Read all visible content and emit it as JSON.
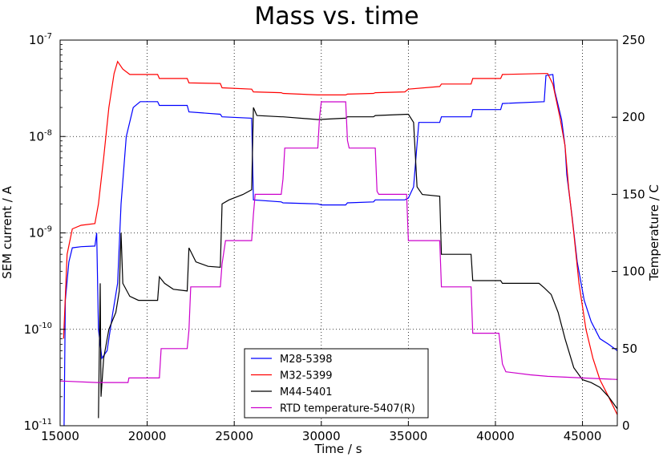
{
  "chart_data": {
    "type": "line",
    "title": "Mass vs. time",
    "xlabel": "Time / s",
    "ylabel_left": "SEM current / A",
    "ylabel_right": "Temperature / C",
    "xlim": [
      15000,
      47000
    ],
    "ylim_left": [
      1e-11,
      1e-07
    ],
    "ylim_right": [
      0,
      250
    ],
    "left_scale": "log",
    "grid": true,
    "legend_position": "lower-center",
    "x_ticks": [
      15000,
      20000,
      25000,
      30000,
      35000,
      40000,
      45000
    ],
    "x_tick_labels": [
      "15000",
      "20000",
      "25000",
      "30000",
      "35000",
      "40000",
      "45000"
    ],
    "y_left_tick_labels": [
      {
        "base": "10",
        "exp": "-11"
      },
      {
        "base": "10",
        "exp": "-10"
      },
      {
        "base": "10",
        "exp": "-9"
      },
      {
        "base": "10",
        "exp": "-8"
      },
      {
        "base": "10",
        "exp": "-7"
      }
    ],
    "y_right_ticks": [
      0,
      50,
      100,
      150,
      200,
      250
    ],
    "y_right_tick_labels": [
      "0",
      "50",
      "100",
      "150",
      "200",
      "250"
    ],
    "series": [
      {
        "name": "M28-5398",
        "color": "#0000ff",
        "axis": "left",
        "points": [
          [
            15200,
            3e-12
          ],
          [
            15300,
            2e-10
          ],
          [
            15500,
            5e-10
          ],
          [
            15700,
            7e-10
          ],
          [
            16200,
            7.2e-10
          ],
          [
            17000,
            7.3e-10
          ],
          [
            17100,
            1e-09
          ],
          [
            17200,
            1e-10
          ],
          [
            17400,
            5e-11
          ],
          [
            17700,
            6e-11
          ],
          [
            18000,
            1.4e-10
          ],
          [
            18300,
            3e-10
          ],
          [
            18500,
            2e-09
          ],
          [
            18800,
            1e-08
          ],
          [
            19200,
            2e-08
          ],
          [
            19600,
            2.3e-08
          ],
          [
            20600,
            2.3e-08
          ],
          [
            20700,
            2.1e-08
          ],
          [
            22300,
            2.1e-08
          ],
          [
            22400,
            1.8e-08
          ],
          [
            24200,
            1.7e-08
          ],
          [
            24300,
            1.6e-08
          ],
          [
            26000,
            1.55e-08
          ],
          [
            26100,
            2.2e-09
          ],
          [
            27700,
            2.1e-09
          ],
          [
            27800,
            2.05e-09
          ],
          [
            29800,
            2e-09
          ],
          [
            30000,
            1.95e-09
          ],
          [
            31400,
            1.95e-09
          ],
          [
            31500,
            2.05e-09
          ],
          [
            33000,
            2.1e-09
          ],
          [
            33100,
            2.2e-09
          ],
          [
            34800,
            2.2e-09
          ],
          [
            35000,
            2.3e-09
          ],
          [
            35300,
            3e-09
          ],
          [
            35600,
            1.4e-08
          ],
          [
            36800,
            1.4e-08
          ],
          [
            36900,
            1.6e-08
          ],
          [
            38600,
            1.6e-08
          ],
          [
            38700,
            1.9e-08
          ],
          [
            40300,
            1.9e-08
          ],
          [
            40400,
            2.2e-08
          ],
          [
            42800,
            2.3e-08
          ],
          [
            42900,
            4.3e-08
          ],
          [
            43300,
            4.4e-08
          ],
          [
            43400,
            3e-08
          ],
          [
            43800,
            1.5e-08
          ],
          [
            44000,
            8e-09
          ],
          [
            44100,
            4e-09
          ],
          [
            44400,
            1.5e-09
          ],
          [
            44700,
            5e-10
          ],
          [
            45100,
            2e-10
          ],
          [
            45500,
            1.2e-10
          ],
          [
            46000,
            8e-11
          ],
          [
            46500,
            7e-11
          ],
          [
            47000,
            6e-11
          ]
        ]
      },
      {
        "name": "M32-5399",
        "color": "#ff0000",
        "axis": "left",
        "points": [
          [
            15200,
            8e-11
          ],
          [
            15400,
            6e-10
          ],
          [
            15700,
            1.1e-09
          ],
          [
            16200,
            1.2e-09
          ],
          [
            17000,
            1.25e-09
          ],
          [
            17200,
            2e-09
          ],
          [
            17500,
            6e-09
          ],
          [
            17800,
            2e-08
          ],
          [
            18100,
            4.5e-08
          ],
          [
            18300,
            6e-08
          ],
          [
            18600,
            5e-08
          ],
          [
            19000,
            4.4e-08
          ],
          [
            20600,
            4.4e-08
          ],
          [
            20700,
            4e-08
          ],
          [
            22300,
            4e-08
          ],
          [
            22400,
            3.6e-08
          ],
          [
            24200,
            3.55e-08
          ],
          [
            24300,
            3.2e-08
          ],
          [
            26000,
            3.1e-08
          ],
          [
            26100,
            2.9e-08
          ],
          [
            27700,
            2.85e-08
          ],
          [
            27800,
            2.8e-08
          ],
          [
            29800,
            2.7e-08
          ],
          [
            31400,
            2.7e-08
          ],
          [
            31500,
            2.75e-08
          ],
          [
            33000,
            2.8e-08
          ],
          [
            33100,
            2.85e-08
          ],
          [
            34800,
            2.9e-08
          ],
          [
            35000,
            3.1e-08
          ],
          [
            36800,
            3.3e-08
          ],
          [
            36900,
            3.5e-08
          ],
          [
            38600,
            3.5e-08
          ],
          [
            38700,
            4e-08
          ],
          [
            40300,
            4e-08
          ],
          [
            40400,
            4.4e-08
          ],
          [
            42800,
            4.5e-08
          ],
          [
            43000,
            4.5e-08
          ],
          [
            43300,
            3.5e-08
          ],
          [
            43700,
            1.6e-08
          ],
          [
            44000,
            8e-09
          ],
          [
            44200,
            3e-09
          ],
          [
            44500,
            1e-09
          ],
          [
            44800,
            3e-10
          ],
          [
            45200,
            1e-10
          ],
          [
            45600,
            5e-11
          ],
          [
            46000,
            3e-11
          ],
          [
            46500,
            2e-11
          ],
          [
            47000,
            1.3e-11
          ]
        ]
      },
      {
        "name": "M44-5401",
        "color": "#000000",
        "axis": "left",
        "points": [
          [
            17200,
            1.2e-11
          ],
          [
            17300,
            3e-10
          ],
          [
            17350,
            2e-11
          ],
          [
            17500,
            5e-11
          ],
          [
            17800,
            1e-10
          ],
          [
            18200,
            1.5e-10
          ],
          [
            18400,
            2.5e-10
          ],
          [
            18500,
            1e-09
          ],
          [
            18600,
            3e-10
          ],
          [
            19000,
            2.2e-10
          ],
          [
            19500,
            2e-10
          ],
          [
            20600,
            2e-10
          ],
          [
            20700,
            3.5e-10
          ],
          [
            21000,
            3e-10
          ],
          [
            21500,
            2.6e-10
          ],
          [
            22300,
            2.5e-10
          ],
          [
            22400,
            7e-10
          ],
          [
            22800,
            5e-10
          ],
          [
            23500,
            4.5e-10
          ],
          [
            24200,
            4.4e-10
          ],
          [
            24300,
            2e-09
          ],
          [
            24700,
            2.2e-09
          ],
          [
            25500,
            2.5e-09
          ],
          [
            26000,
            2.8e-09
          ],
          [
            26100,
            2e-08
          ],
          [
            26300,
            1.65e-08
          ],
          [
            27700,
            1.6e-08
          ],
          [
            27800,
            1.6e-08
          ],
          [
            29800,
            1.5e-08
          ],
          [
            31400,
            1.55e-08
          ],
          [
            31500,
            1.6e-08
          ],
          [
            33000,
            1.6e-08
          ],
          [
            33100,
            1.65e-08
          ],
          [
            35000,
            1.7e-08
          ],
          [
            35300,
            1.4e-08
          ],
          [
            35500,
            3e-09
          ],
          [
            35800,
            2.5e-09
          ],
          [
            36800,
            2.4e-09
          ],
          [
            36900,
            6e-10
          ],
          [
            38600,
            6e-10
          ],
          [
            38700,
            3.2e-10
          ],
          [
            40300,
            3.2e-10
          ],
          [
            40400,
            3e-10
          ],
          [
            42500,
            3e-10
          ],
          [
            42800,
            2.7e-10
          ],
          [
            43200,
            2.3e-10
          ],
          [
            43600,
            1.5e-10
          ],
          [
            44000,
            8e-11
          ],
          [
            44500,
            4e-11
          ],
          [
            45000,
            3e-11
          ],
          [
            45500,
            2.8e-11
          ],
          [
            46000,
            2.5e-11
          ],
          [
            46500,
            2e-11
          ],
          [
            47000,
            1.5e-11
          ]
        ]
      },
      {
        "name": "RTD temperature-5407(R)",
        "color": "#cc00cc",
        "axis": "right",
        "points": [
          [
            15000,
            29
          ],
          [
            17100,
            28
          ],
          [
            17200,
            28
          ],
          [
            18200,
            28
          ],
          [
            18900,
            28
          ],
          [
            18950,
            31
          ],
          [
            19000,
            31
          ],
          [
            20600,
            31
          ],
          [
            20700,
            31
          ],
          [
            20800,
            50
          ],
          [
            22300,
            50
          ],
          [
            22400,
            62
          ],
          [
            22500,
            90
          ],
          [
            24200,
            90
          ],
          [
            24300,
            105
          ],
          [
            24500,
            120
          ],
          [
            26000,
            120
          ],
          [
            26100,
            137
          ],
          [
            26200,
            150
          ],
          [
            27700,
            150
          ],
          [
            27800,
            160
          ],
          [
            27900,
            180
          ],
          [
            29800,
            180
          ],
          [
            29900,
            200
          ],
          [
            30000,
            210
          ],
          [
            31400,
            210
          ],
          [
            31500,
            185
          ],
          [
            31600,
            180
          ],
          [
            33100,
            180
          ],
          [
            33200,
            152
          ],
          [
            33300,
            150
          ],
          [
            34900,
            150
          ],
          [
            35000,
            120
          ],
          [
            35100,
            120
          ],
          [
            36800,
            120
          ],
          [
            36900,
            90
          ],
          [
            37000,
            90
          ],
          [
            38600,
            90
          ],
          [
            38700,
            60
          ],
          [
            38800,
            60
          ],
          [
            40200,
            60
          ],
          [
            40400,
            40
          ],
          [
            40600,
            35
          ],
          [
            42000,
            33
          ],
          [
            43000,
            32
          ],
          [
            45000,
            31
          ],
          [
            47000,
            30
          ]
        ]
      }
    ]
  }
}
